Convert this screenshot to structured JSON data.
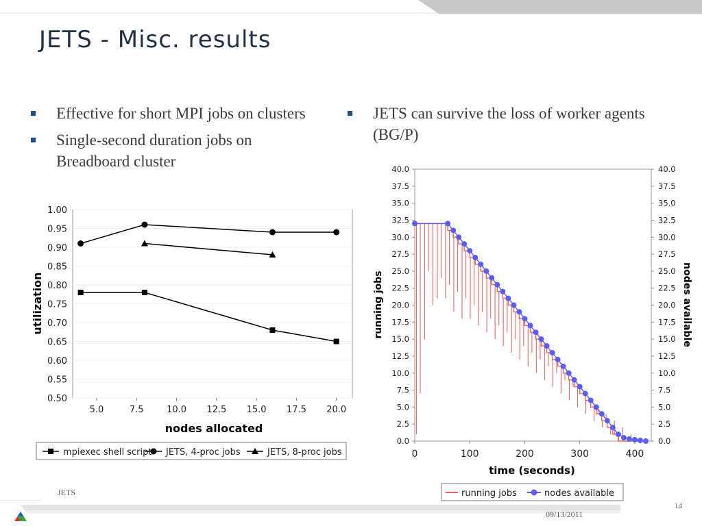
{
  "slide": {
    "title": "JETS - Misc. results",
    "left_bullets": [
      "Effective for short  MPI jobs on clusters",
      "Single-second duration jobs on Breadboard cluster"
    ],
    "right_bullets": [
      "JETS can survive the loss of worker agents (BG/P)"
    ],
    "footer": {
      "label": "JETS",
      "date": "09/13/2011",
      "page": "14"
    },
    "colors": {
      "title": "#1f3144",
      "bullet": "#1f4e8c",
      "band": "#c8c8c8",
      "running_jobs": "#f06060",
      "nodes_available": "#5a5ef0",
      "series_black": "#000000"
    }
  },
  "chart_data": [
    {
      "type": "line",
      "xlabel": "nodes allocated",
      "ylabel": "utilization",
      "xlim": [
        3.5,
        21
      ],
      "ylim": [
        0.5,
        1.0
      ],
      "xticks": [
        "5.0",
        "7.5",
        "10.0",
        "12.5",
        "15.0",
        "17.5",
        "20.0"
      ],
      "yticks": [
        "0.50",
        "0.55",
        "0.60",
        "0.65",
        "0.70",
        "0.75",
        "0.80",
        "0.85",
        "0.90",
        "0.95",
        "1.00"
      ],
      "legend_position": "bottom",
      "series": [
        {
          "name": "mpiexec shell script",
          "marker": "square",
          "x": [
            4,
            8,
            16,
            20
          ],
          "y": [
            0.78,
            0.78,
            0.68,
            0.65
          ]
        },
        {
          "name": "JETS, 4-proc jobs",
          "marker": "circle",
          "x": [
            4,
            8,
            16,
            20
          ],
          "y": [
            0.91,
            0.96,
            0.94,
            0.94
          ]
        },
        {
          "name": "JETS, 8-proc jobs",
          "marker": "triangle",
          "x": [
            8,
            16
          ],
          "y": [
            0.91,
            0.88
          ]
        }
      ]
    },
    {
      "type": "line",
      "xlabel": "time (seconds)",
      "ylabel": "running jobs",
      "y2label": "nodes available",
      "xlim": [
        0,
        430
      ],
      "ylim": [
        0,
        40
      ],
      "xticks": [
        "0",
        "100",
        "200",
        "300",
        "400"
      ],
      "yticks": [
        "0.0",
        "2.5",
        "5.0",
        "7.5",
        "10.0",
        "12.5",
        "15.0",
        "17.5",
        "20.0",
        "22.5",
        "25.0",
        "27.5",
        "30.0",
        "32.5",
        "35.0",
        "37.5",
        "40.0"
      ],
      "legend_position": "bottom",
      "series": [
        {
          "name": "running jobs",
          "style": "line",
          "x": [
            0,
            60,
            60,
            70,
            70,
            80,
            80,
            90,
            90,
            100,
            100,
            110,
            110,
            120,
            120,
            130,
            130,
            140,
            140,
            150,
            150,
            160,
            160,
            170,
            170,
            180,
            180,
            190,
            190,
            200,
            200,
            210,
            210,
            220,
            220,
            230,
            230,
            240,
            240,
            250,
            250,
            260,
            260,
            270,
            270,
            280,
            280,
            290,
            290,
            300,
            300,
            310,
            310,
            320,
            320,
            330,
            330,
            340,
            340,
            350,
            350,
            360,
            360,
            370,
            370,
            380,
            380,
            390,
            390,
            400,
            400,
            410,
            410,
            420
          ],
          "y": [
            32,
            32,
            31,
            31,
            30,
            30,
            29,
            29,
            28,
            28,
            27,
            27,
            26,
            26,
            25,
            25,
            24,
            24,
            23,
            23,
            22,
            22,
            21,
            21,
            20,
            20,
            19,
            19,
            18,
            18,
            17,
            17,
            16,
            16,
            15,
            15,
            14,
            14,
            13,
            13,
            12,
            12,
            11,
            11,
            10,
            10,
            9,
            9,
            8,
            8,
            7,
            7,
            6,
            6,
            5,
            5,
            4,
            4,
            3,
            3,
            2,
            2,
            1,
            1,
            0,
            0,
            0,
            0,
            0,
            0,
            0,
            0,
            0,
            0
          ],
          "dips": [
            [
              3,
              1
            ],
            [
              10,
              7
            ],
            [
              18,
              15
            ],
            [
              25,
              25
            ],
            [
              33,
              20
            ],
            [
              41,
              21
            ],
            [
              48,
              24
            ],
            [
              56,
              21
            ],
            [
              63,
              23
            ],
            [
              71,
              19
            ],
            [
              78,
              22
            ],
            [
              86,
              18
            ],
            [
              93,
              21
            ],
            [
              101,
              18
            ],
            [
              108,
              20
            ],
            [
              116,
              17
            ],
            [
              123,
              19
            ],
            [
              131,
              16
            ],
            [
              138,
              18
            ],
            [
              146,
              15
            ],
            [
              153,
              17
            ],
            [
              161,
              14
            ],
            [
              168,
              16
            ],
            [
              176,
              13
            ],
            [
              183,
              15
            ],
            [
              191,
              12
            ],
            [
              198,
              14
            ],
            [
              206,
              11
            ],
            [
              213,
              13
            ],
            [
              221,
              10
            ],
            [
              228,
              12
            ],
            [
              236,
              9
            ],
            [
              243,
              11
            ],
            [
              251,
              8
            ],
            [
              258,
              10
            ],
            [
              266,
              7
            ],
            [
              273,
              9
            ],
            [
              281,
              6
            ],
            [
              288,
              8
            ],
            [
              296,
              5
            ],
            [
              303,
              7
            ],
            [
              311,
              4
            ],
            [
              318,
              6
            ],
            [
              326,
              3
            ],
            [
              333,
              5
            ],
            [
              341,
              2
            ],
            [
              348,
              4
            ],
            [
              356,
              1
            ],
            [
              363,
              3
            ],
            [
              371,
              1
            ],
            [
              378,
              2
            ],
            [
              386,
              0
            ],
            [
              393,
              1
            ],
            [
              401,
              0
            ],
            [
              408,
              0
            ],
            [
              415,
              0
            ]
          ]
        },
        {
          "name": "nodes available",
          "style": "line+circle",
          "x": [
            0,
            60,
            70,
            80,
            90,
            100,
            110,
            120,
            130,
            140,
            150,
            160,
            170,
            180,
            190,
            200,
            210,
            220,
            230,
            240,
            250,
            260,
            270,
            280,
            290,
            300,
            310,
            320,
            330,
            340,
            350,
            360,
            370,
            380,
            390,
            400,
            410,
            420
          ],
          "y": [
            32,
            32,
            31,
            30,
            29,
            28,
            27,
            26,
            25,
            24,
            23,
            22,
            21,
            20,
            19,
            18,
            17,
            16,
            15,
            14,
            13,
            12,
            11,
            10,
            9,
            8,
            7,
            6,
            5,
            4,
            3,
            2,
            1,
            0.5,
            0.3,
            0.2,
            0.1,
            0
          ]
        }
      ]
    }
  ]
}
